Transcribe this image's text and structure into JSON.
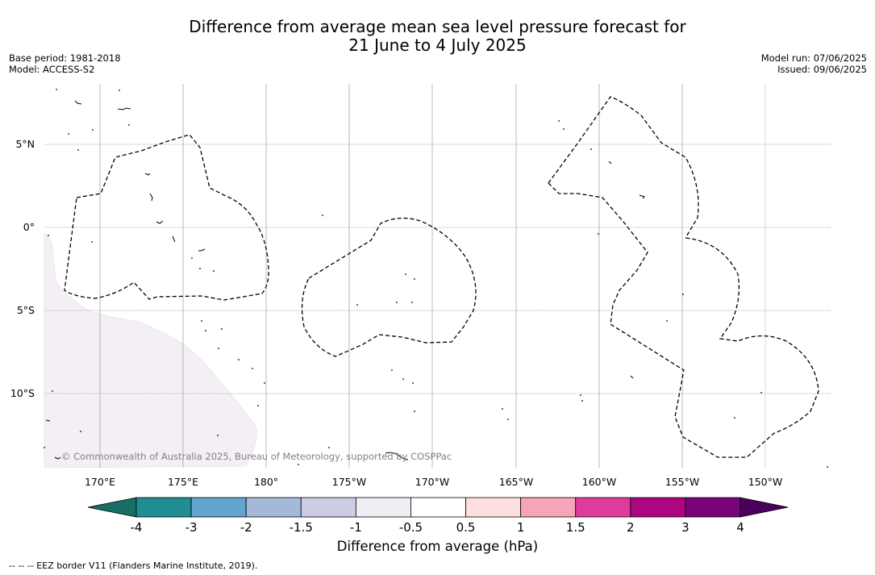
{
  "title_line1": "Difference from average mean sea level pressure forecast for",
  "title_line2": "21 June to 4 July 2025",
  "base_period": "Base period: 1981-2018",
  "model": "Model: ACCESS-S2",
  "model_run": "Model run: 07/06/2025",
  "issued": "Issued: 09/06/2025",
  "copyright": "© Commonwealth of Australia 2025, Bureau of Meteorology, supported by COSPPac",
  "lat_labels": [
    "5°N",
    "0°",
    "5°S",
    "10°S"
  ],
  "lon_labels": [
    "170°E",
    "175°E",
    "180°",
    "175°W",
    "170°W",
    "165°W",
    "160°W",
    "155°W",
    "150°W"
  ],
  "colorbar": {
    "title": "Difference from average (hPa)",
    "tick_labels": [
      "-4",
      "-3",
      "-2",
      "-1.5",
      "-1",
      "-0.5",
      "0.5",
      "1",
      "1.5",
      "2",
      "3",
      "4"
    ],
    "colors": [
      "#176e64",
      "#218c94",
      "#62a6cf",
      "#a4b8d8",
      "#cccde3",
      "#f1edf5",
      "#ffffff",
      "#fde0dd",
      "#f7a3b8",
      "#de3c9a",
      "#ad0681",
      "#790479",
      "#4b005e"
    ]
  },
  "legend_footnote": "--  --  -- EEZ border V11 (Flanders Marine Institute, 2019)."
}
